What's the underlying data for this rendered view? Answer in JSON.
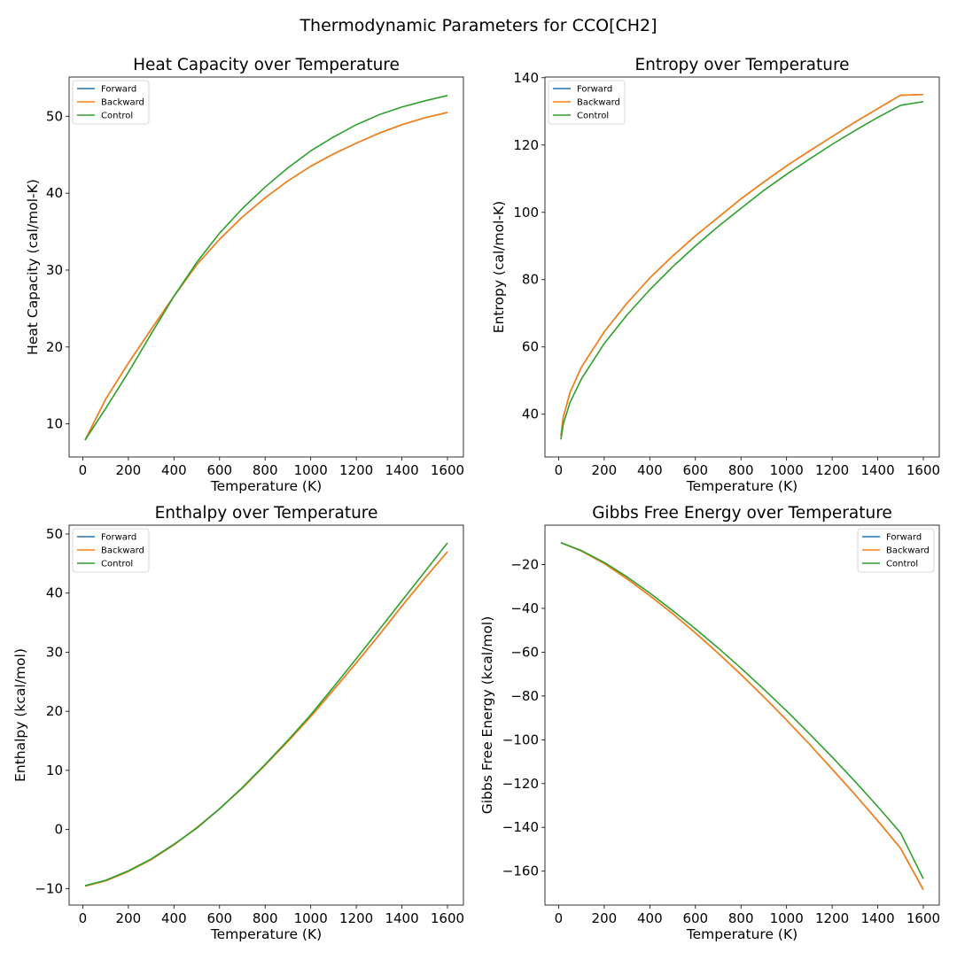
{
  "figure": {
    "title": "Thermodynamic Parameters for CCO[CH2]",
    "colors": {
      "Forward": "#1f77b4",
      "Backward": "#ff7f0e",
      "Control": "#2ca02c"
    }
  },
  "chart_data": [
    {
      "type": "line",
      "title": "Heat Capacity over Temperature",
      "xlabel": "Temperature (K)",
      "ylabel": "Heat Capacity (cal/mol-K)",
      "xlim": [
        -60,
        1670
      ],
      "ylim": [
        5.7,
        55.1
      ],
      "xticks": [
        0,
        200,
        400,
        600,
        800,
        1000,
        1200,
        1400,
        1600
      ],
      "yticks": [
        10,
        20,
        30,
        40,
        50
      ],
      "legend_loc": "upper left",
      "x": [
        10,
        100,
        200,
        300,
        400,
        500,
        600,
        700,
        800,
        900,
        1000,
        1100,
        1200,
        1300,
        1400,
        1500,
        1600
      ],
      "series": [
        {
          "name": "Forward",
          "values": [
            7.9,
            13.2,
            17.9,
            22.3,
            26.6,
            30.7,
            34.0,
            36.9,
            39.4,
            41.6,
            43.5,
            45.1,
            46.5,
            47.8,
            48.9,
            49.8,
            50.5
          ]
        },
        {
          "name": "Backward",
          "values": [
            7.9,
            13.2,
            17.9,
            22.3,
            26.6,
            30.7,
            34.0,
            36.9,
            39.4,
            41.6,
            43.5,
            45.1,
            46.5,
            47.8,
            48.9,
            49.8,
            50.5
          ]
        },
        {
          "name": "Control",
          "values": [
            7.9,
            12.0,
            16.7,
            21.7,
            26.6,
            31.0,
            34.8,
            38.0,
            40.8,
            43.3,
            45.5,
            47.3,
            48.9,
            50.2,
            51.2,
            52.0,
            52.7
          ]
        }
      ]
    },
    {
      "type": "line",
      "title": "Entropy over Temperature",
      "xlabel": "Temperature (K)",
      "ylabel": "Entropy (cal/mol-K)",
      "xlim": [
        -60,
        1670
      ],
      "ylim": [
        27.3,
        140.2
      ],
      "xticks": [
        0,
        200,
        400,
        600,
        800,
        1000,
        1200,
        1400,
        1600
      ],
      "yticks": [
        40,
        60,
        80,
        100,
        120,
        140
      ],
      "legend_loc": "upper left",
      "x": [
        10,
        20,
        50,
        100,
        200,
        300,
        400,
        500,
        600,
        700,
        800,
        900,
        1000,
        1100,
        1200,
        1300,
        1400,
        1500,
        1600
      ],
      "series": [
        {
          "name": "Forward",
          "values": [
            33.5,
            39.0,
            46.5,
            54.0,
            64.5,
            73.0,
            80.5,
            87.0,
            93.0,
            98.5,
            104.0,
            109.0,
            113.8,
            118.2,
            122.5,
            126.8,
            130.8,
            134.8,
            135.0
          ]
        },
        {
          "name": "Backward",
          "values": [
            33.5,
            39.0,
            46.5,
            54.0,
            64.5,
            73.0,
            80.5,
            87.0,
            93.0,
            98.5,
            104.0,
            109.0,
            113.8,
            118.2,
            122.5,
            126.8,
            130.8,
            134.8,
            135.0
          ]
        },
        {
          "name": "Control",
          "values": [
            32.5,
            37.0,
            43.5,
            50.5,
            61.0,
            69.5,
            77.0,
            83.8,
            90.0,
            95.8,
            101.2,
            106.5,
            111.3,
            115.8,
            120.2,
            124.3,
            128.2,
            131.8,
            132.9
          ]
        }
      ]
    },
    {
      "type": "line",
      "title": "Enthalpy over Temperature",
      "xlabel": "Temperature (K)",
      "ylabel": "Enthalpy (kcal/mol)",
      "xlim": [
        -60,
        1670
      ],
      "ylim": [
        -12.8,
        51.5
      ],
      "xticks": [
        0,
        200,
        400,
        600,
        800,
        1000,
        1200,
        1400,
        1600
      ],
      "yticks": [
        -10,
        0,
        10,
        20,
        30,
        40,
        50
      ],
      "legend_loc": "upper left",
      "x": [
        10,
        100,
        200,
        300,
        400,
        500,
        600,
        700,
        800,
        900,
        1000,
        1100,
        1200,
        1300,
        1400,
        1500,
        1600
      ],
      "series": [
        {
          "name": "Forward",
          "values": [
            -9.6,
            -8.7,
            -7.1,
            -5.1,
            -2.6,
            0.3,
            3.5,
            7.0,
            10.9,
            14.9,
            19.1,
            23.6,
            28.2,
            32.9,
            37.8,
            42.5,
            47.0
          ]
        },
        {
          "name": "Backward",
          "values": [
            -9.6,
            -8.7,
            -7.1,
            -5.1,
            -2.6,
            0.3,
            3.5,
            7.0,
            10.9,
            14.9,
            19.1,
            23.6,
            28.2,
            32.9,
            37.8,
            42.5,
            47.0
          ]
        },
        {
          "name": "Control",
          "values": [
            -9.5,
            -8.6,
            -7.0,
            -5.0,
            -2.5,
            0.2,
            3.5,
            7.1,
            11.0,
            15.1,
            19.4,
            24.1,
            28.9,
            33.8,
            38.7,
            43.6,
            48.5
          ]
        }
      ]
    },
    {
      "type": "line",
      "title": "Gibbs Free Energy over Temperature",
      "xlabel": "Temperature (K)",
      "ylabel": "Gibbs Free Energy (kcal/mol)",
      "xlim": [
        -60,
        1670
      ],
      "ylim": [
        -175.5,
        -2.0
      ],
      "xticks": [
        0,
        200,
        400,
        600,
        800,
        1000,
        1200,
        1400,
        1600
      ],
      "yticks": [
        -20,
        -40,
        -60,
        -80,
        -100,
        -120,
        -140,
        -160
      ],
      "legend_loc": "upper right",
      "x": [
        10,
        100,
        200,
        300,
        400,
        500,
        600,
        700,
        800,
        900,
        1000,
        1100,
        1200,
        1300,
        1400,
        1500,
        1600
      ],
      "series": [
        {
          "name": "Forward",
          "values": [
            -10.0,
            -13.8,
            -19.5,
            -26.5,
            -34.2,
            -42.4,
            -51.2,
            -60.5,
            -70.2,
            -80.4,
            -91.0,
            -102.0,
            -113.4,
            -125.0,
            -137.0,
            -149.5,
            -168.5
          ]
        },
        {
          "name": "Backward",
          "values": [
            -10.0,
            -13.8,
            -19.5,
            -26.5,
            -34.2,
            -42.4,
            -51.2,
            -60.5,
            -70.2,
            -80.4,
            -91.0,
            -102.0,
            -113.4,
            -125.0,
            -137.0,
            -149.5,
            -168.5
          ]
        },
        {
          "name": "Control",
          "values": [
            -10.0,
            -13.6,
            -19.0,
            -25.6,
            -33.0,
            -41.0,
            -49.3,
            -58.1,
            -67.3,
            -76.9,
            -86.8,
            -97.2,
            -107.9,
            -119.0,
            -130.5,
            -142.5,
            -163.5
          ]
        }
      ]
    }
  ]
}
